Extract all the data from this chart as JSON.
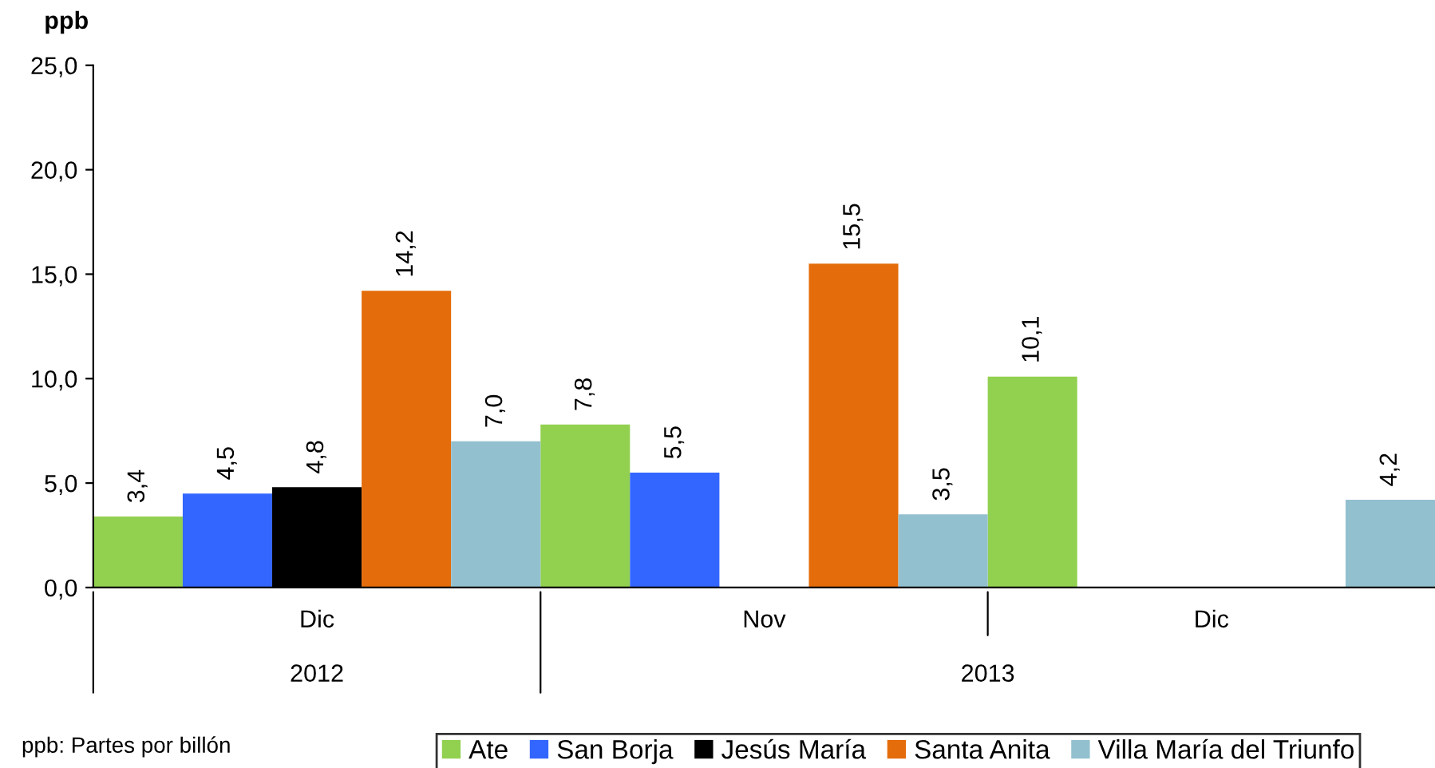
{
  "chart_data": {
    "type": "bar",
    "ylabel": "ppb",
    "categories": [
      "Dic",
      "Nov",
      "Dic"
    ],
    "series": [
      {
        "name": "Ate",
        "color": "#92d050",
        "values": [
          3.4,
          7.8,
          10.1
        ],
        "value_labels": [
          "3,4",
          "7,8",
          "10,1"
        ]
      },
      {
        "name": "San Borja",
        "color": "#3366ff",
        "values": [
          4.5,
          5.5,
          null
        ],
        "value_labels": [
          "4,5",
          "5,5",
          null
        ]
      },
      {
        "name": "Jesús María",
        "color": "#000000",
        "values": [
          4.8,
          null,
          null
        ],
        "value_labels": [
          "4,8",
          null,
          null
        ]
      },
      {
        "name": "Santa Anita",
        "color": "#e46c0a",
        "values": [
          14.2,
          15.5,
          null
        ],
        "value_labels": [
          "14,2",
          "15,5",
          null
        ]
      },
      {
        "name": "Villa María del Triunfo",
        "color": "#93c0cf",
        "values": [
          7.0,
          3.5,
          4.2
        ],
        "value_labels": [
          "7,0",
          "3,5",
          "4,2"
        ]
      }
    ],
    "ylim": [
      0,
      25
    ],
    "yticks": [
      {
        "value": 0,
        "label": "0,0"
      },
      {
        "value": 5,
        "label": "5,0"
      },
      {
        "value": 10,
        "label": "10,0"
      },
      {
        "value": 15,
        "label": "15,0"
      },
      {
        "value": 20,
        "label": "20,0"
      },
      {
        "value": 25,
        "label": "25,0"
      }
    ],
    "grid": false,
    "legend": "bottom",
    "annotations": [
      "2012",
      "2013",
      "ppb: Partes por billón"
    ]
  }
}
